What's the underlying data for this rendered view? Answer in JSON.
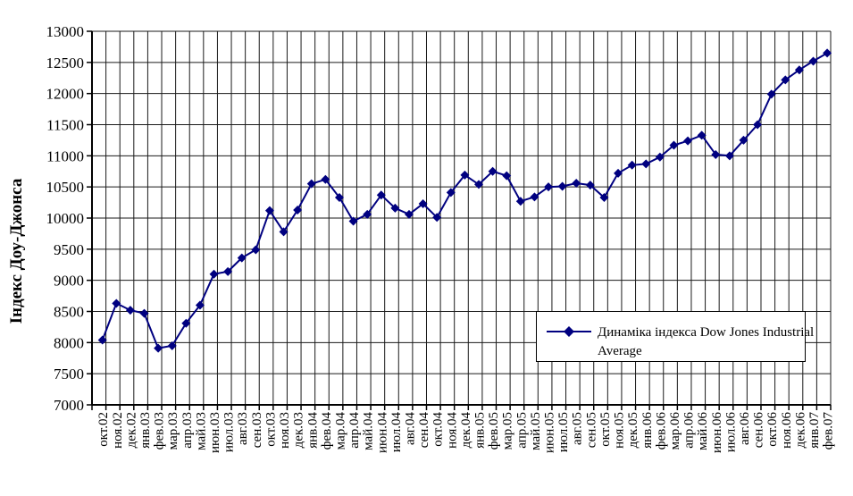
{
  "chart_data": {
    "type": "line",
    "title": "",
    "ylabel": "Індекс Доу-Джонса",
    "xlabel": "",
    "ylim": [
      7000,
      13000
    ],
    "ytick_step": 500,
    "grid": "on",
    "legend_position": "inside-right-lower",
    "x": [
      "окт.02",
      "ноя.02",
      "дек.02",
      "янв.03",
      "фев.03",
      "мар.03",
      "апр.03",
      "май.03",
      "июн.03",
      "июл.03",
      "авг.03",
      "сен.03",
      "окт.03",
      "ноя.03",
      "дек.03",
      "янв.04",
      "фев.04",
      "мар.04",
      "апр.04",
      "май.04",
      "июн.04",
      "июл.04",
      "авг.04",
      "сен.04",
      "окт.04",
      "ноя.04",
      "дек.04",
      "янв.05",
      "фев.05",
      "мар.05",
      "апр.05",
      "май.05",
      "июн.05",
      "июл.05",
      "авг.05",
      "сен.05",
      "окт.05",
      "ноя.05",
      "дек.05",
      "янв.06",
      "фев.06",
      "мар.06",
      "апр.06",
      "май.06",
      "июн.06",
      "июл.06",
      "авг.06",
      "сен.06",
      "окт.06",
      "ноя.06",
      "дек.06",
      "янв.07",
      "фев.07"
    ],
    "series": [
      {
        "name": "Динаміка індекса Dow Jones Industrial Average",
        "values": [
          8040,
          8630,
          8520,
          8470,
          7910,
          7950,
          8310,
          8600,
          9100,
          9140,
          9360,
          9490,
          10120,
          9780,
          10130,
          10550,
          10620,
          10330,
          9950,
          10060,
          10370,
          10160,
          10060,
          10230,
          10010,
          10410,
          10690,
          10540,
          10750,
          10680,
          10270,
          10340,
          10500,
          10510,
          10560,
          10530,
          10330,
          10720,
          10850,
          10870,
          10980,
          11170,
          11240,
          11330,
          11020,
          11000,
          11250,
          11500,
          11990,
          12220,
          12380,
          12520,
          12650
        ]
      }
    ],
    "colors": {
      "series": "#000080",
      "grid": "#1a1a1a",
      "axis": "#000000",
      "text": "#000000",
      "legend_bg": "#ffffff",
      "legend_border": "#000000"
    }
  },
  "legend": {
    "line1": "Динаміка індекса Dow Jones Industrial",
    "line2": "Average"
  }
}
